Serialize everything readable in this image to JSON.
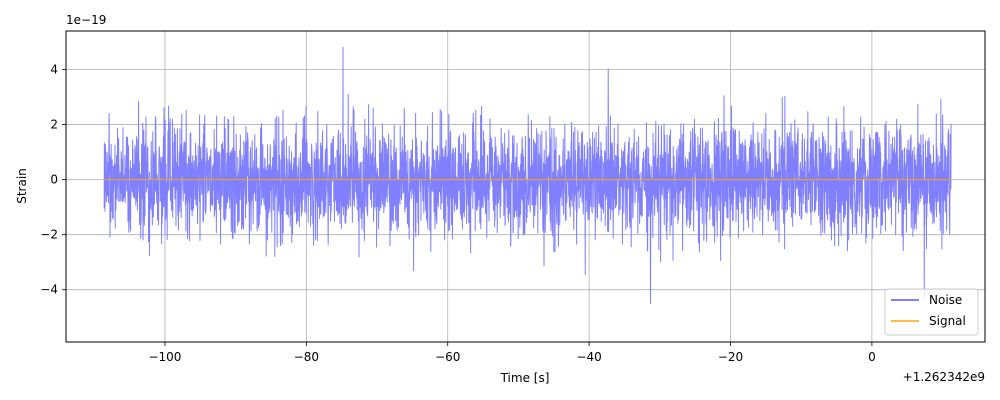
{
  "chart_data": {
    "type": "line",
    "title": "",
    "xlabel": "Time [s]",
    "ylabel": "Strain",
    "x_offset_label": "+1.262342e9",
    "y_scale_label": "1e−19",
    "xlim": [
      -114,
      16
    ],
    "ylim": [
      -5.9,
      5.4
    ],
    "x_ticks": [
      -100,
      -80,
      -60,
      -40,
      -20,
      0
    ],
    "x_tick_labels": [
      "−100",
      "−80",
      "−60",
      "−40",
      "−20",
      "0"
    ],
    "y_ticks": [
      -4,
      -2,
      0,
      2,
      4
    ],
    "y_tick_labels": [
      "−4",
      "−2",
      "0",
      "2",
      "4"
    ],
    "grid": true,
    "legend_position": "lower-right",
    "noise_extent": {
      "x_start": -108.6,
      "x_end": 11.2,
      "typical_amplitude": 2.3,
      "max_peak": 4.9,
      "min_peak": -5.4
    },
    "series": [
      {
        "name": "Noise",
        "color": "#8080ff",
        "style": "dense random strain trace"
      },
      {
        "name": "Signal",
        "color": "#ffa500",
        "x": [
          -108.6,
          11.2
        ],
        "y": [
          0,
          0
        ]
      }
    ]
  }
}
